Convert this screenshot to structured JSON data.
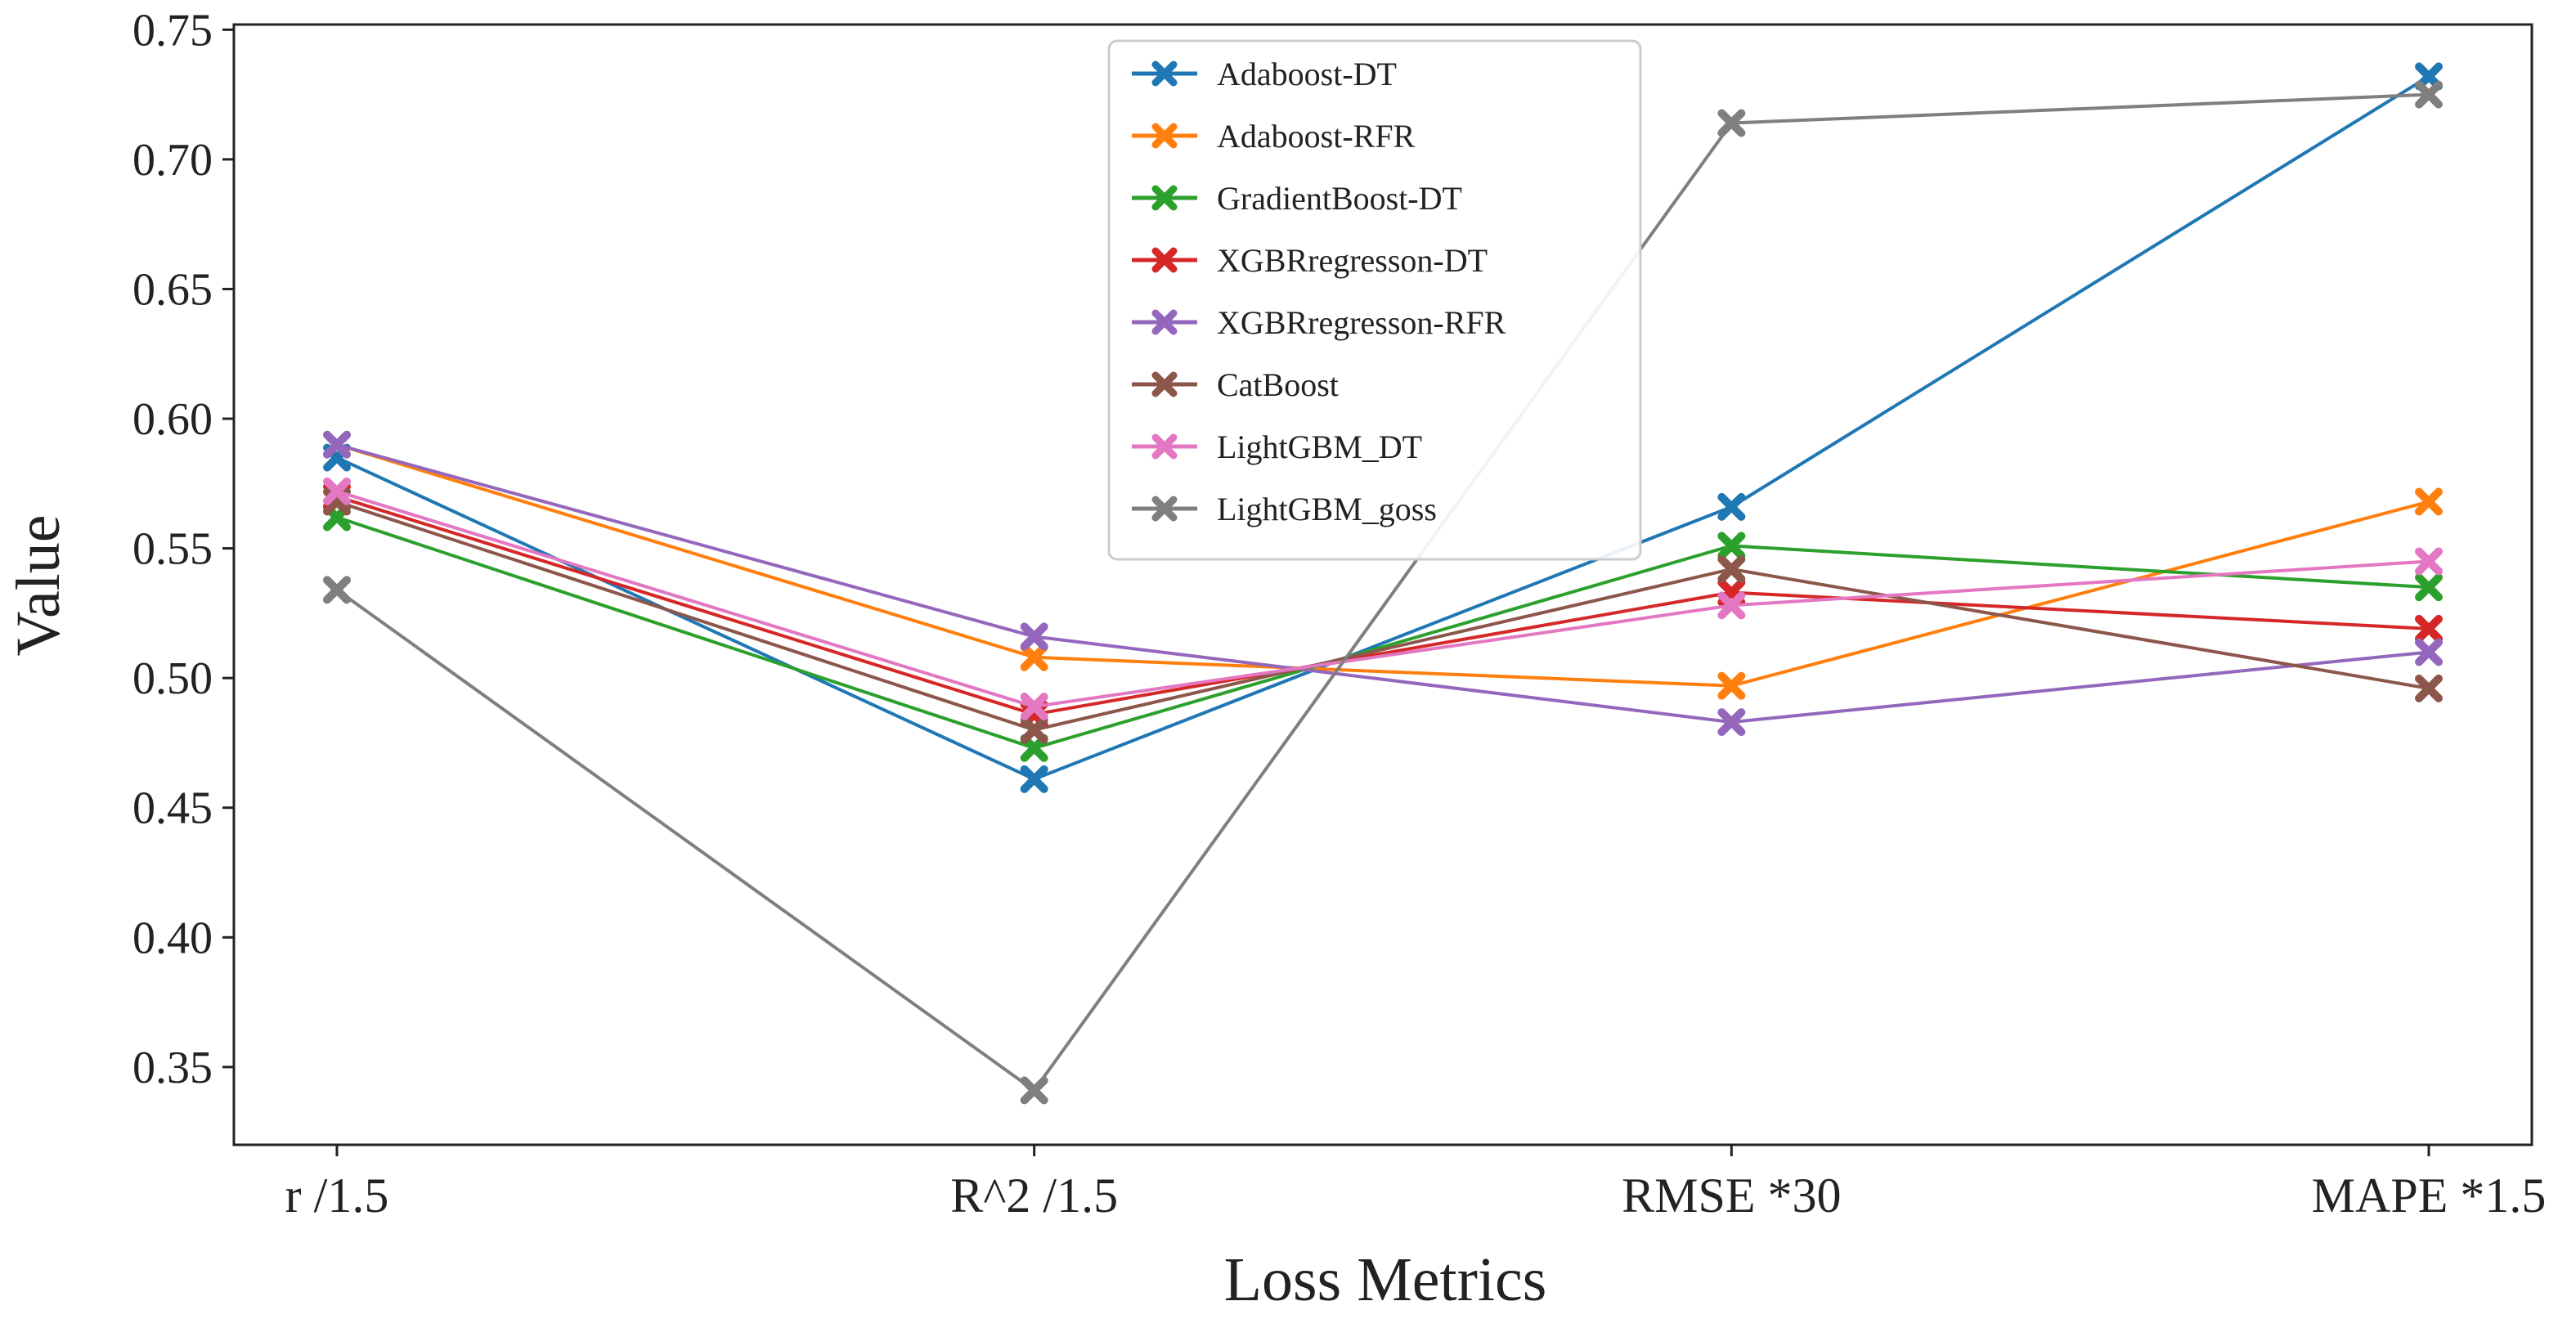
{
  "chart_data": {
    "type": "line",
    "title": "",
    "xlabel": "Loss Metrics",
    "ylabel": "Value",
    "categories": [
      "r /1.5",
      "R^2 /1.5",
      "RMSE *30",
      "MAPE *1.5"
    ],
    "ylim": [
      0.32,
      0.752
    ],
    "yticks": [
      0.35,
      0.4,
      0.45,
      0.5,
      0.55,
      0.6,
      0.65,
      0.7,
      0.75
    ],
    "ytick_labels": [
      "0.35",
      "0.40",
      "0.45",
      "0.50",
      "0.55",
      "0.60",
      "0.65",
      "0.70",
      "0.75"
    ],
    "grid": false,
    "legend_position": "top-center",
    "marker": "x",
    "series": [
      {
        "name": "Adaboost-DT",
        "color": "#1f77b4",
        "values": [
          0.585,
          0.461,
          0.566,
          0.732
        ]
      },
      {
        "name": "Adaboost-RFR",
        "color": "#ff7f0e",
        "values": [
          0.59,
          0.508,
          0.497,
          0.568
        ]
      },
      {
        "name": "GradientBoost-DT",
        "color": "#2ca02c",
        "values": [
          0.562,
          0.473,
          0.551,
          0.535
        ]
      },
      {
        "name": "XGBRregresson-DT",
        "color": "#d62728",
        "values": [
          0.57,
          0.486,
          0.533,
          0.519
        ]
      },
      {
        "name": "XGBRregresson-RFR",
        "color": "#9467bd",
        "values": [
          0.59,
          0.516,
          0.483,
          0.51
        ]
      },
      {
        "name": "CatBoost",
        "color": "#8c564b",
        "values": [
          0.568,
          0.48,
          0.542,
          0.496
        ]
      },
      {
        "name": "LightGBM_DT",
        "color": "#e377c2",
        "values": [
          0.572,
          0.489,
          0.528,
          0.545
        ]
      },
      {
        "name": "LightGBM_goss",
        "color": "#7f7f7f",
        "values": [
          0.534,
          0.341,
          0.714,
          0.725
        ]
      }
    ]
  }
}
